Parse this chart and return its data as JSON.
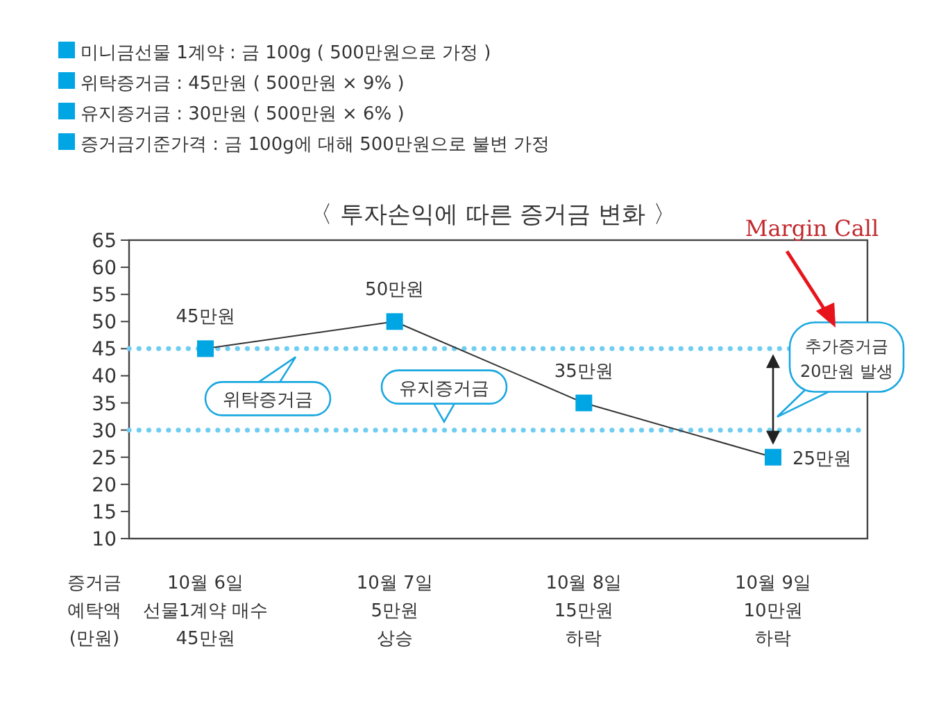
{
  "chart_data": {
    "type": "line",
    "title": "〈 투자손익에 따른 증거금 변화 〉",
    "ylabel": "증거금\n예탁액\n(만원)",
    "categories": [
      "10월 6일\n선물1계약 매수\n45만원",
      "10월 7일\n5만원\n상승",
      "10월 8일\n15만원\n하락",
      "10월 9일\n10만원\n하락"
    ],
    "series": [
      {
        "color": "#00a5e3",
        "values": [
          45,
          50,
          35,
          25
        ],
        "value_labels": [
          "45만원",
          "50만원",
          "35만원",
          "25만원"
        ]
      }
    ],
    "marker": "square",
    "line_style": "solid",
    "grid": false,
    "ylim": [
      10,
      65
    ],
    "yticks": [
      10,
      15,
      20,
      25,
      30,
      35,
      40,
      45,
      50,
      55,
      60,
      65
    ],
    "ref_lines": [
      {
        "axis": "y",
        "value": 45,
        "label": "위탁증거금",
        "color": "#6fcdf2",
        "line_style": "dotted"
      },
      {
        "axis": "y",
        "value": 30,
        "label": "유지증거금",
        "color": "#6fcdf2",
        "line_style": "dotted"
      }
    ],
    "annotations": [
      "미니금선물 1계약 : 금 100g ( 500만원으로 가정 )",
      "위탁증거금 : 45만원 ( 500만원 × 9% )",
      "유지증거금 : 30만원 ( 500만원 × 6% )",
      "증거금기준가격 : 금 100g에 대해 500만원으로 불변 가정",
      "Margin Call",
      "추가증거금\n20만원 발생"
    ]
  }
}
